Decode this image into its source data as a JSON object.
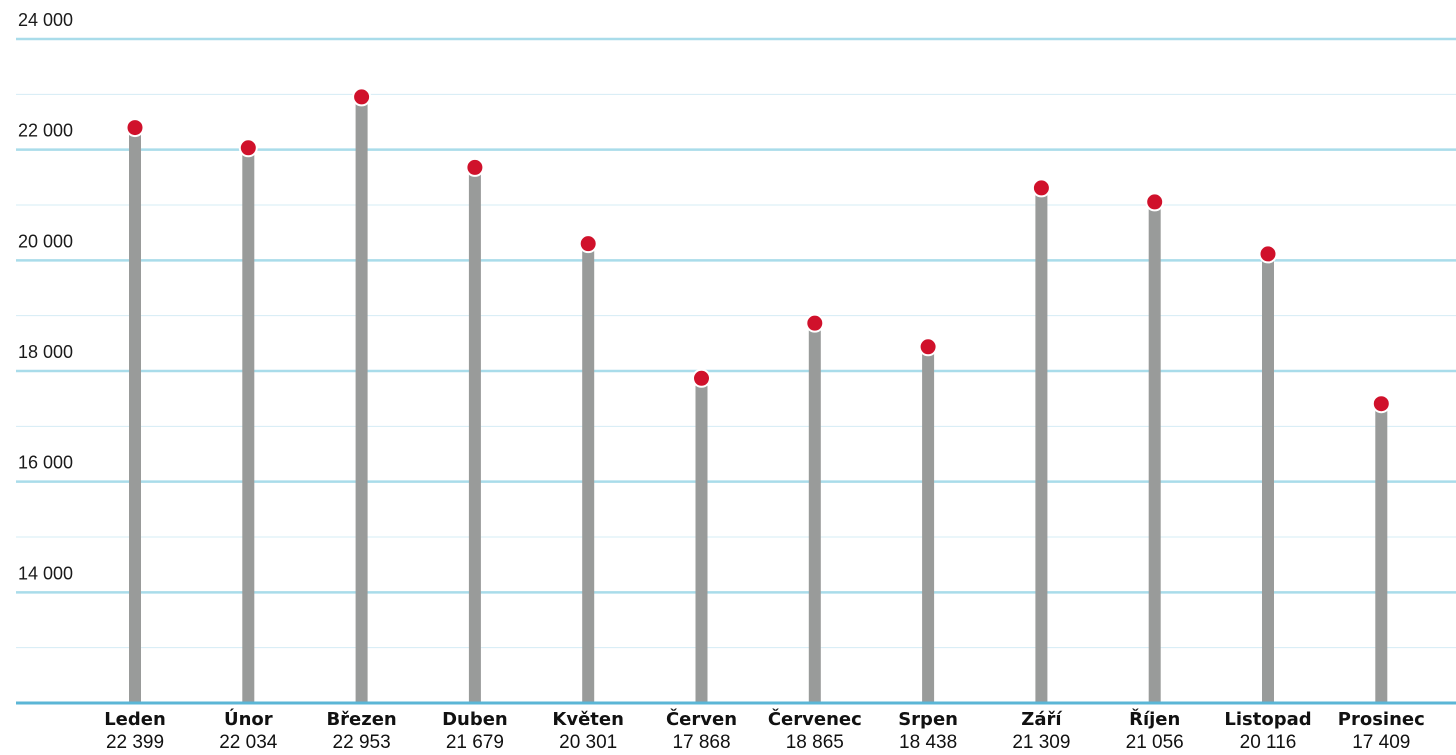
{
  "chart_data": {
    "type": "lollipop",
    "categories": [
      "Leden",
      "Únor",
      "Březen",
      "Duben",
      "Květen",
      "Červen",
      "Červenec",
      "Srpen",
      "Září",
      "Říjen",
      "Listopad",
      "Prosinec"
    ],
    "values": [
      22399,
      22034,
      22953,
      21679,
      20301,
      17868,
      18865,
      18438,
      21309,
      21056,
      20116,
      17409
    ],
    "value_labels": [
      "22 399",
      "22 034",
      "22 953",
      "21 679",
      "20 301",
      "17 868",
      "18 865",
      "18 438",
      "21 309",
      "21 056",
      "20 116",
      "17 409"
    ],
    "yticks": [
      14000,
      16000,
      18000,
      20000,
      22000,
      24000
    ],
    "ytick_labels": [
      "14 000",
      "16 000",
      "18 000",
      "20 000",
      "22 000",
      "24 000"
    ],
    "ylim": [
      12000,
      24000
    ],
    "grid": true,
    "legend": "none",
    "colors": {
      "stem": "#999b9a",
      "marker": "#d0112b",
      "grid_major": "#a9dcea",
      "grid_minor": "#d4ecf4",
      "baseline": "#5bb6d6"
    }
  }
}
